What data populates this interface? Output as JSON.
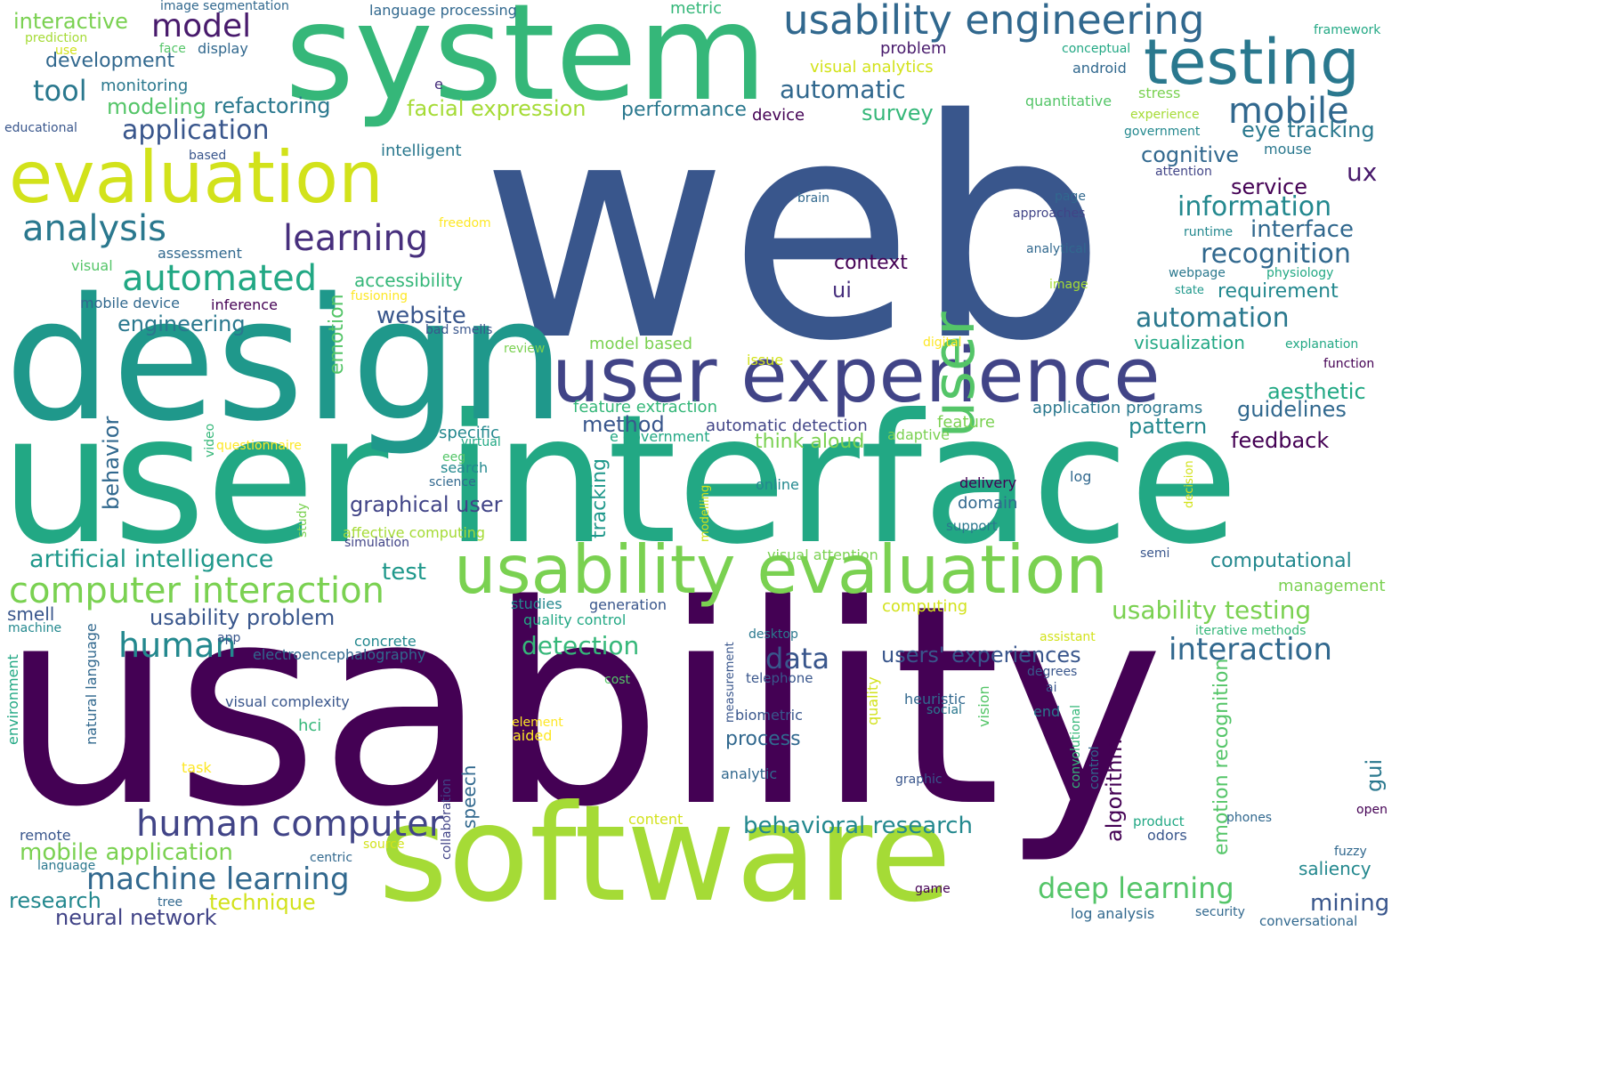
{
  "palette": {
    "background": "#ffffff",
    "c0": "#440154",
    "c1": "#481a6c",
    "c2": "#472f7d",
    "c3": "#414487",
    "c4": "#39568c",
    "c5": "#31688e",
    "c6": "#2a788e",
    "c7": "#23888e",
    "c8": "#1f988b",
    "c9": "#22a884",
    "c10": "#35b779",
    "c11": "#54c568",
    "c12": "#7ad151",
    "c13": "#a5db36",
    "c14": "#d2e21b",
    "c15": "#fde725"
  },
  "words": [
    {
      "text": "web",
      "color": "#39568c"
    },
    {
      "text": "usability",
      "color": "#440154"
    },
    {
      "text": "user interface",
      "color": "#22a884"
    },
    {
      "text": "design",
      "color": "#1f988b"
    },
    {
      "text": "system",
      "color": "#35b779"
    },
    {
      "text": "software",
      "color": "#a5db36"
    },
    {
      "text": "user experience",
      "color": "#414487"
    },
    {
      "text": "usability evaluation",
      "color": "#7ad151"
    },
    {
      "text": "evaluation",
      "color": "#d2e21b"
    },
    {
      "text": "testing",
      "color": "#2a788e"
    },
    {
      "text": "usability engineering",
      "color": "#31688e"
    },
    {
      "text": "user",
      "color": "#54c568"
    },
    {
      "text": "analysis",
      "color": "#2a788e"
    },
    {
      "text": "learning",
      "color": "#472f7d"
    },
    {
      "text": "automated",
      "color": "#22a884"
    },
    {
      "text": "computer interaction",
      "color": "#7ad151"
    },
    {
      "text": "human computer",
      "color": "#414487"
    },
    {
      "text": "machine learning",
      "color": "#31688e"
    },
    {
      "text": "mobile",
      "color": "#31688e"
    },
    {
      "text": "model",
      "color": "#481a6c"
    },
    {
      "text": "application",
      "color": "#39568c"
    },
    {
      "text": "information",
      "color": "#23888e"
    },
    {
      "text": "automation",
      "color": "#2a788e"
    },
    {
      "text": "interaction",
      "color": "#31688e"
    },
    {
      "text": "deep learning",
      "color": "#54c568"
    },
    {
      "text": "artificial intelligence",
      "color": "#1f988b"
    },
    {
      "text": "usability testing",
      "color": "#7ad151"
    },
    {
      "text": "human",
      "color": "#23888e"
    },
    {
      "text": "data",
      "color": "#39568c"
    },
    {
      "text": "recognition",
      "color": "#31688e"
    },
    {
      "text": "tool",
      "color": "#2a788e"
    },
    {
      "text": "automatic",
      "color": "#31688e"
    },
    {
      "text": "mobile application",
      "color": "#7ad151"
    },
    {
      "text": "behavioral research",
      "color": "#23888e"
    },
    {
      "text": "usability problem",
      "color": "#39568c"
    },
    {
      "text": "detection",
      "color": "#35b779"
    },
    {
      "text": "graphical user",
      "color": "#414487"
    },
    {
      "text": "website",
      "color": "#39568c"
    },
    {
      "text": "users' experiences",
      "color": "#39568c"
    },
    {
      "text": "ux",
      "color": "#481a6c"
    },
    {
      "text": "interface",
      "color": "#31688e"
    },
    {
      "text": "facial expression",
      "color": "#a5db36"
    },
    {
      "text": "eye tracking",
      "color": "#2a788e"
    },
    {
      "text": "service",
      "color": "#440154"
    },
    {
      "text": "survey",
      "color": "#35b779"
    },
    {
      "text": "performance",
      "color": "#2a788e"
    },
    {
      "text": "cognitive",
      "color": "#31688e"
    },
    {
      "text": "refactoring",
      "color": "#2a788e"
    },
    {
      "text": "modeling",
      "color": "#54c568"
    },
    {
      "text": "engineering",
      "color": "#2a788e"
    },
    {
      "text": "research",
      "color": "#23888e"
    },
    {
      "text": "neural network",
      "color": "#414487"
    },
    {
      "text": "mining",
      "color": "#39568c"
    },
    {
      "text": "technique",
      "color": "#d2e21b"
    },
    {
      "text": "feedback",
      "color": "#440154"
    },
    {
      "text": "pattern",
      "color": "#23888e"
    },
    {
      "text": "aesthetic",
      "color": "#22a884"
    },
    {
      "text": "guidelines",
      "color": "#31688e"
    },
    {
      "text": "computational",
      "color": "#23888e"
    },
    {
      "text": "method",
      "color": "#39568c"
    },
    {
      "text": "test",
      "color": "#1f988b"
    },
    {
      "text": "context",
      "color": "#440154"
    },
    {
      "text": "ui",
      "color": "#472f7d"
    },
    {
      "text": "requirement",
      "color": "#23888e"
    },
    {
      "text": "think aloud",
      "color": "#7ad151"
    },
    {
      "text": "process",
      "color": "#31688e"
    },
    {
      "text": "development",
      "color": "#31688e"
    },
    {
      "text": "interactive",
      "color": "#7ad151"
    },
    {
      "text": "accessibility",
      "color": "#35b779"
    },
    {
      "text": "visualization",
      "color": "#22a884"
    },
    {
      "text": "emotion",
      "color": "#54c568"
    },
    {
      "text": "behavior",
      "color": "#31688e"
    },
    {
      "text": "saliency",
      "color": "#23888e"
    },
    {
      "text": "algorithm",
      "color": "#440154"
    },
    {
      "text": "emotion recognition",
      "color": "#54c568"
    },
    {
      "text": "tracking",
      "color": "#1f988b"
    },
    {
      "text": "speech",
      "color": "#31688e"
    },
    {
      "text": "gui",
      "color": "#2a788e"
    },
    {
      "text": "management",
      "color": "#7ad151"
    },
    {
      "text": "feature extraction",
      "color": "#35b779"
    },
    {
      "text": "application programs",
      "color": "#2a788e"
    },
    {
      "text": "automatic detection",
      "color": "#414487"
    },
    {
      "text": "feature",
      "color": "#7ad151"
    },
    {
      "text": "domain",
      "color": "#31688e"
    },
    {
      "text": "specific",
      "color": "#23888e"
    },
    {
      "text": "model based",
      "color": "#7ad151"
    },
    {
      "text": "smell",
      "color": "#39568c"
    },
    {
      "text": "device",
      "color": "#440154"
    },
    {
      "text": "problem",
      "color": "#481a6c"
    },
    {
      "text": "visual analytics",
      "color": "#d2e21b"
    },
    {
      "text": "e government",
      "color": "#22a884"
    },
    {
      "text": "adaptive",
      "color": "#7ad151"
    },
    {
      "text": "visual attention",
      "color": "#7ad151"
    },
    {
      "text": "affective computing",
      "color": "#a5db36"
    },
    {
      "text": "computing",
      "color": "#d2e21b"
    },
    {
      "text": "generation",
      "color": "#39568c"
    },
    {
      "text": "quality control",
      "color": "#22a884"
    },
    {
      "text": "studies",
      "color": "#23888e"
    },
    {
      "text": "electroencephalography",
      "color": "#31688e"
    },
    {
      "text": "concrete",
      "color": "#23888e"
    },
    {
      "text": "visual complexity",
      "color": "#39568c"
    },
    {
      "text": "hci",
      "color": "#35b779"
    },
    {
      "text": "natural language",
      "color": "#31688e"
    },
    {
      "text": "environment",
      "color": "#22a884"
    },
    {
      "text": "machine",
      "color": "#23888e"
    },
    {
      "text": "app",
      "color": "#39568c"
    },
    {
      "text": "mobile device",
      "color": "#31688e"
    },
    {
      "text": "inference",
      "color": "#440154"
    },
    {
      "text": "bad smells",
      "color": "#39568c"
    },
    {
      "text": "visual",
      "color": "#54c568"
    },
    {
      "text": "assessment",
      "color": "#31688e"
    },
    {
      "text": "fusioning",
      "color": "#fde725"
    },
    {
      "text": "review",
      "color": "#7ad151"
    },
    {
      "text": "freedom",
      "color": "#fde725"
    },
    {
      "text": "intelligent",
      "color": "#2a788e"
    },
    {
      "text": "based",
      "color": "#39568c"
    },
    {
      "text": "educational",
      "color": "#39568c"
    },
    {
      "text": "prediction",
      "color": "#a5db36"
    },
    {
      "text": "use",
      "color": "#d2e21b"
    },
    {
      "text": "face",
      "color": "#54c568"
    },
    {
      "text": "display",
      "color": "#31688e"
    },
    {
      "text": "monitoring",
      "color": "#2a788e"
    },
    {
      "text": "image segmentation",
      "color": "#31688e"
    },
    {
      "text": "language processing",
      "color": "#31688e"
    },
    {
      "text": "metric",
      "color": "#35b779"
    },
    {
      "text": "framework",
      "color": "#22a884"
    },
    {
      "text": "conceptual",
      "color": "#22a884"
    },
    {
      "text": "android",
      "color": "#31688e"
    },
    {
      "text": "quantitative",
      "color": "#54c568"
    },
    {
      "text": "stress",
      "color": "#7ad151"
    },
    {
      "text": "experience",
      "color": "#a5db36"
    },
    {
      "text": "government",
      "color": "#23888e"
    },
    {
      "text": "mouse",
      "color": "#2a788e"
    },
    {
      "text": "attention",
      "color": "#414487"
    },
    {
      "text": "brain",
      "color": "#31688e"
    },
    {
      "text": "page",
      "color": "#31688e"
    },
    {
      "text": "approaches",
      "color": "#414487"
    },
    {
      "text": "analytical",
      "color": "#31688e"
    },
    {
      "text": "runtime",
      "color": "#23888e"
    },
    {
      "text": "webpage",
      "color": "#2a788e"
    },
    {
      "text": "physiology",
      "color": "#22a884"
    },
    {
      "text": "image",
      "color": "#a5db36"
    },
    {
      "text": "state",
      "color": "#1f988b"
    },
    {
      "text": "explanation",
      "color": "#22a884"
    },
    {
      "text": "function",
      "color": "#440154"
    },
    {
      "text": "issue",
      "color": "#d2e21b"
    },
    {
      "text": "digital",
      "color": "#fde725"
    },
    {
      "text": "e",
      "color": "#472f7d"
    },
    {
      "text": "questionnaire",
      "color": "#fde725"
    },
    {
      "text": "video",
      "color": "#35b779"
    },
    {
      "text": "virtual",
      "color": "#22a884"
    },
    {
      "text": "eeg",
      "color": "#54c568"
    },
    {
      "text": "search",
      "color": "#23888e"
    },
    {
      "text": "science",
      "color": "#31688e"
    },
    {
      "text": "study",
      "color": "#7ad151"
    },
    {
      "text": "simulation",
      "color": "#414487"
    },
    {
      "text": "online",
      "color": "#23888e"
    },
    {
      "text": "modelling",
      "color": "#d2e21b"
    },
    {
      "text": "delivery",
      "color": "#440154"
    },
    {
      "text": "support",
      "color": "#2a788e"
    },
    {
      "text": "log",
      "color": "#31688e"
    },
    {
      "text": "decision",
      "color": "#d2e21b"
    },
    {
      "text": "semi",
      "color": "#39568c"
    },
    {
      "text": "iterative methods",
      "color": "#35b779"
    },
    {
      "text": "desktop",
      "color": "#2a788e"
    },
    {
      "text": "measurement",
      "color": "#39568c"
    },
    {
      "text": "telephone",
      "color": "#39568c"
    },
    {
      "text": "cost",
      "color": "#54c568"
    },
    {
      "text": "quality",
      "color": "#d2e21b"
    },
    {
      "text": "biometric",
      "color": "#39568c"
    },
    {
      "text": "heuristic",
      "color": "#31688e"
    },
    {
      "text": "social",
      "color": "#2a788e"
    },
    {
      "text": "end",
      "color": "#2a788e"
    },
    {
      "text": "degrees",
      "color": "#39568c"
    },
    {
      "text": "ai",
      "color": "#39568c"
    },
    {
      "text": "assistant",
      "color": "#d2e21b"
    },
    {
      "text": "vision",
      "color": "#54c568"
    },
    {
      "text": "convolutional",
      "color": "#35b779"
    },
    {
      "text": "control",
      "color": "#31688e"
    },
    {
      "text": "analytic",
      "color": "#31688e"
    },
    {
      "text": "graphic",
      "color": "#39568c"
    },
    {
      "text": "element",
      "color": "#fde725"
    },
    {
      "text": "aided",
      "color": "#fde725"
    },
    {
      "text": "task",
      "color": "#fde725"
    },
    {
      "text": "content",
      "color": "#d2e21b"
    },
    {
      "text": "collaboration",
      "color": "#414487"
    },
    {
      "text": "product",
      "color": "#22a884"
    },
    {
      "text": "odors",
      "color": "#39568c"
    },
    {
      "text": "phones",
      "color": "#31688e"
    },
    {
      "text": "open",
      "color": "#440154"
    },
    {
      "text": "fuzzy",
      "color": "#31688e"
    },
    {
      "text": "remote",
      "color": "#39568c"
    },
    {
      "text": "source",
      "color": "#d2e21b"
    },
    {
      "text": "centric",
      "color": "#31688e"
    },
    {
      "text": "language",
      "color": "#2a788e"
    },
    {
      "text": "tree",
      "color": "#31688e"
    },
    {
      "text": "game",
      "color": "#440154"
    },
    {
      "text": "log analysis",
      "color": "#31688e"
    },
    {
      "text": "security",
      "color": "#31688e"
    },
    {
      "text": "conversational",
      "color": "#31688e"
    }
  ]
}
